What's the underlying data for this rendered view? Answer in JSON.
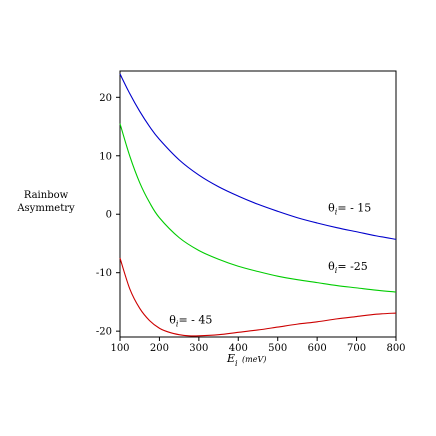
{
  "chart_data": {
    "type": "line",
    "xlabel": "E_i (meV)",
    "xlabel_main": "E",
    "xlabel_sub": "i",
    "xlabel_unit": "(meV)",
    "ylabel_line1": "Rainbow",
    "ylabel_line2": "Asymmetry",
    "xlim": [
      100,
      800
    ],
    "ylim": [
      -21,
      24.5
    ],
    "x_ticks": [
      100,
      200,
      300,
      400,
      500,
      600,
      700,
      800
    ],
    "x_tick_labels": [
      "100",
      "200",
      "300",
      "400",
      "500",
      "600",
      "700",
      "800"
    ],
    "y_ticks": [
      20,
      10,
      0,
      -10,
      -20
    ],
    "y_tick_labels": [
      "20",
      "10",
      "0",
      "-10",
      "-20"
    ],
    "grid": false,
    "series": [
      {
        "name": "θi = - 15",
        "color": "#0000cc",
        "x": [
          100,
          125,
          150,
          175,
          200,
          250,
          300,
          350,
          400,
          450,
          500,
          550,
          600,
          650,
          700,
          750,
          800
        ],
        "y": [
          24.0,
          20.6,
          17.6,
          15.0,
          12.8,
          9.3,
          6.7,
          4.7,
          3.1,
          1.7,
          0.5,
          -0.6,
          -1.5,
          -2.3,
          -3.0,
          -3.7,
          -4.3
        ]
      },
      {
        "name": "θi = -25",
        "color": "#00cc00",
        "x": [
          100,
          125,
          150,
          175,
          200,
          250,
          300,
          350,
          400,
          450,
          500,
          550,
          600,
          650,
          700,
          750,
          800
        ],
        "y": [
          15.5,
          9.9,
          5.4,
          2.0,
          -0.6,
          -4.0,
          -6.2,
          -7.7,
          -8.9,
          -9.8,
          -10.6,
          -11.2,
          -11.7,
          -12.2,
          -12.6,
          -13.0,
          -13.3
        ]
      },
      {
        "name": "θi = - 45",
        "color": "#cc0000",
        "x": [
          100,
          125,
          150,
          175,
          200,
          225,
          250,
          275,
          300,
          350,
          400,
          450,
          500,
          550,
          600,
          650,
          700,
          750,
          800
        ],
        "y": [
          -7.5,
          -12.8,
          -16.1,
          -18.2,
          -19.5,
          -20.2,
          -20.6,
          -20.8,
          -20.8,
          -20.6,
          -20.2,
          -19.8,
          -19.3,
          -18.8,
          -18.4,
          -17.9,
          -17.5,
          -17.1,
          -16.9
        ]
      }
    ],
    "annotations": [
      {
        "main": "θ",
        "sub": "i",
        "rest": "= - 15",
        "x": 628,
        "y": 0.5
      },
      {
        "main": "θ",
        "sub": "i",
        "rest": "= -25",
        "x": 628,
        "y": -9.5
      },
      {
        "main": "θ",
        "sub": "i",
        "rest": "= - 45",
        "x": 225,
        "y": -18.7
      }
    ]
  }
}
